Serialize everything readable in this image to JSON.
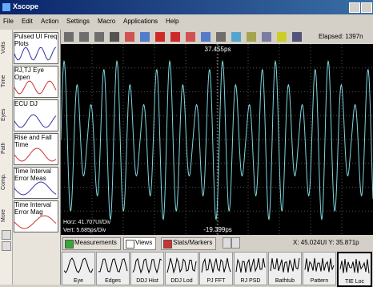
{
  "window": {
    "title": "Xscope",
    "elapsed": "Elapsed: 1397n"
  },
  "menu": [
    "File",
    "Edit",
    "Action",
    "Settings",
    "Macro",
    "Applications",
    "Help"
  ],
  "side_tabs": [
    "Volts",
    "Time",
    "Eyes",
    "Path",
    "Comp.",
    "More"
  ],
  "thumbnails": [
    "Pulsed UI Freq Plots",
    "RJ,TJ Eye Open",
    "ECU DJ",
    "Rise and Fall Time",
    "Time Interval Error Meas",
    "Time Interval Error Mag"
  ],
  "scope": {
    "top_label": "37.455ps",
    "bottom_label": "-19.399ps",
    "horz": "Horz: 41.707UI/Div",
    "vert": "Vert: 5.685ps/Div"
  },
  "tabs": [
    "Measurements",
    "Views",
    "Stats/Markers"
  ],
  "cursor": "X: 45.024UI Y: 35.871p",
  "views": [
    "Eye",
    "Edges",
    "DDJ Hist",
    "DDJ Lod",
    "PJ FFT",
    "RJ PSD",
    "Bathtub",
    "Pattern",
    "TIE Loc"
  ]
}
